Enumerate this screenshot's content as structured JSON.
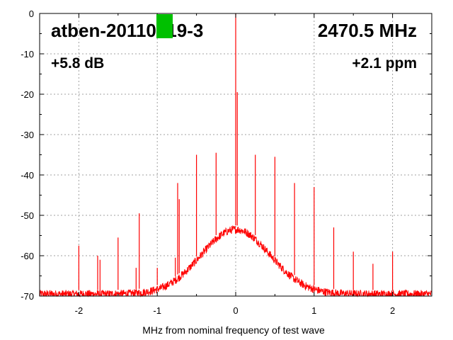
{
  "chart_data": {
    "type": "line",
    "title": "atben-20110219-3",
    "frequency": "2470.5 MHz",
    "gain": "+5.8 dB",
    "offset": "+2.1 ppm",
    "xlabel": "MHz from nominal frequency of test wave",
    "ylabel": "",
    "xlim": [
      -2.5,
      2.5
    ],
    "ylim": [
      -70,
      0
    ],
    "xticks": [
      -2,
      -1,
      0,
      1,
      2
    ],
    "yticks": [
      0,
      -10,
      -20,
      -30,
      -40,
      -50,
      -60,
      -70
    ],
    "grid": true,
    "noise_floor": {
      "center_mhz": 0,
      "peak_db": -53.5,
      "edge_db": -69.5,
      "shape": "broad hump"
    },
    "spurs": [
      {
        "x": -2.0,
        "y": -57.5
      },
      {
        "x": -1.76,
        "y": -60.0
      },
      {
        "x": -1.73,
        "y": -61.0
      },
      {
        "x": -1.5,
        "y": -55.5
      },
      {
        "x": -1.27,
        "y": -63.0
      },
      {
        "x": -1.23,
        "y": -49.5
      },
      {
        "x": -1.0,
        "y": -63.0
      },
      {
        "x": -0.77,
        "y": -60.5
      },
      {
        "x": -0.74,
        "y": -42.0
      },
      {
        "x": -0.72,
        "y": -46.0
      },
      {
        "x": -0.5,
        "y": -35.0
      },
      {
        "x": -0.25,
        "y": -34.5
      },
      {
        "x": 0.0,
        "y": 0.0
      },
      {
        "x": 0.02,
        "y": -19.5
      },
      {
        "x": 0.25,
        "y": -35.0
      },
      {
        "x": 0.5,
        "y": -35.5
      },
      {
        "x": 0.75,
        "y": -42.0
      },
      {
        "x": 1.0,
        "y": -43.0
      },
      {
        "x": 1.25,
        "y": -53.0
      },
      {
        "x": 1.5,
        "y": -59.0
      },
      {
        "x": 1.75,
        "y": -62.0
      },
      {
        "x": 2.0,
        "y": -59.0
      }
    ],
    "series_color": "#ff0000",
    "marker_color": "#00c000"
  }
}
